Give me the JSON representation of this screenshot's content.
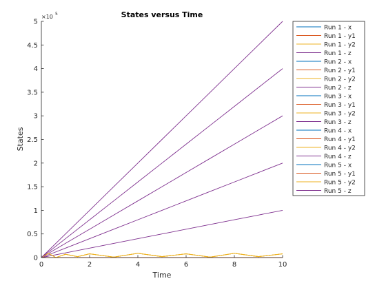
{
  "chart_data": {
    "type": "line",
    "title": "States versus Time",
    "xlabel": "Time",
    "ylabel": "States",
    "xlim": [
      0,
      10
    ],
    "ylim": [
      0,
      500000
    ],
    "x_ticks": [
      0,
      2,
      4,
      6,
      8,
      10
    ],
    "x_tick_labels": [
      "0",
      "2",
      "4",
      "6",
      "8",
      "10"
    ],
    "y_ticks": [
      0,
      50000,
      100000,
      150000,
      200000,
      250000,
      300000,
      350000,
      400000,
      450000,
      500000
    ],
    "y_tick_labels": [
      "0",
      "0.5",
      "1",
      "1.5",
      "2",
      "2.5",
      "3",
      "3.5",
      "4",
      "4.5",
      "5"
    ],
    "y_exponent_base": "×10",
    "y_exponent_power": "5",
    "grid": false,
    "legend_position": "outside-right",
    "series": [
      {
        "name": "Run 1 - x",
        "color": "#0072BD",
        "x": [
          0,
          10
        ],
        "y": [
          0,
          0
        ]
      },
      {
        "name": "Run 1 - y1",
        "color": "#D95319",
        "x": [
          0,
          10
        ],
        "y": [
          0,
          0
        ]
      },
      {
        "name": "Run 1 - y2",
        "color": "#EDB120",
        "x": [
          0,
          0.3,
          0.6,
          1,
          1.5,
          2,
          3,
          4,
          5,
          6,
          7,
          8,
          9,
          10
        ],
        "y": [
          0,
          9000,
          0,
          7000,
          2000,
          8000,
          1000,
          9000,
          2000,
          8000,
          1000,
          9000,
          2000,
          8000
        ]
      },
      {
        "name": "Run 1 - z",
        "color": "#7E2F8E",
        "x": [
          0,
          1,
          2,
          3,
          4,
          5,
          6,
          7,
          8,
          9,
          10
        ],
        "y": [
          0,
          10000,
          20000,
          30000,
          40000,
          50000,
          60000,
          70000,
          80000,
          90000,
          100000
        ]
      },
      {
        "name": "Run 2 - x",
        "color": "#0072BD",
        "x": [
          0,
          10
        ],
        "y": [
          0,
          0
        ]
      },
      {
        "name": "Run 2 - y1",
        "color": "#D95319",
        "x": [
          0,
          10
        ],
        "y": [
          0,
          0
        ]
      },
      {
        "name": "Run 2 - y2",
        "color": "#EDB120",
        "x": [
          0,
          0.3,
          0.6,
          1,
          1.5,
          2,
          3,
          4,
          5,
          6,
          7,
          8,
          9,
          10
        ],
        "y": [
          0,
          9000,
          0,
          7000,
          2000,
          8000,
          1000,
          9000,
          2000,
          8000,
          1000,
          9000,
          2000,
          8000
        ]
      },
      {
        "name": "Run 2 - z",
        "color": "#7E2F8E",
        "x": [
          0,
          1,
          2,
          3,
          4,
          5,
          6,
          7,
          8,
          9,
          10
        ],
        "y": [
          0,
          20000,
          40000,
          60000,
          80000,
          100000,
          120000,
          140000,
          160000,
          180000,
          200000
        ]
      },
      {
        "name": "Run 3 - x",
        "color": "#0072BD",
        "x": [
          0,
          10
        ],
        "y": [
          0,
          0
        ]
      },
      {
        "name": "Run 3 - y1",
        "color": "#D95319",
        "x": [
          0,
          10
        ],
        "y": [
          0,
          0
        ]
      },
      {
        "name": "Run 3 - y2",
        "color": "#EDB120",
        "x": [
          0,
          0.3,
          0.6,
          1,
          1.5,
          2,
          3,
          4,
          5,
          6,
          7,
          8,
          9,
          10
        ],
        "y": [
          0,
          9000,
          0,
          7000,
          2000,
          8000,
          1000,
          9000,
          2000,
          8000,
          1000,
          9000,
          2000,
          8000
        ]
      },
      {
        "name": "Run 3 - z",
        "color": "#7E2F8E",
        "x": [
          0,
          1,
          2,
          3,
          4,
          5,
          6,
          7,
          8,
          9,
          10
        ],
        "y": [
          0,
          30000,
          60000,
          90000,
          120000,
          150000,
          180000,
          210000,
          240000,
          270000,
          300000
        ]
      },
      {
        "name": "Run 4 - x",
        "color": "#0072BD",
        "x": [
          0,
          10
        ],
        "y": [
          0,
          0
        ]
      },
      {
        "name": "Run 4 - y1",
        "color": "#D95319",
        "x": [
          0,
          10
        ],
        "y": [
          0,
          0
        ]
      },
      {
        "name": "Run 4 - y2",
        "color": "#EDB120",
        "x": [
          0,
          0.3,
          0.6,
          1,
          1.5,
          2,
          3,
          4,
          5,
          6,
          7,
          8,
          9,
          10
        ],
        "y": [
          0,
          9000,
          0,
          7000,
          2000,
          8000,
          1000,
          9000,
          2000,
          8000,
          1000,
          9000,
          2000,
          8000
        ]
      },
      {
        "name": "Run 4 - z",
        "color": "#7E2F8E",
        "x": [
          0,
          1,
          2,
          3,
          4,
          5,
          6,
          7,
          8,
          9,
          10
        ],
        "y": [
          0,
          40000,
          80000,
          120000,
          160000,
          200000,
          240000,
          280000,
          320000,
          360000,
          400000
        ]
      },
      {
        "name": "Run 5 - x",
        "color": "#0072BD",
        "x": [
          0,
          10
        ],
        "y": [
          0,
          0
        ]
      },
      {
        "name": "Run 5 - y1",
        "color": "#D95319",
        "x": [
          0,
          10
        ],
        "y": [
          0,
          0
        ]
      },
      {
        "name": "Run 5 - y2",
        "color": "#EDB120",
        "x": [
          0,
          0.3,
          0.6,
          1,
          1.5,
          2,
          3,
          4,
          5,
          6,
          7,
          8,
          9,
          10
        ],
        "y": [
          0,
          9000,
          0,
          7000,
          2000,
          8000,
          1000,
          9000,
          2000,
          8000,
          1000,
          9000,
          2000,
          8000
        ]
      },
      {
        "name": "Run 5 - z",
        "color": "#7E2F8E",
        "x": [
          0,
          1,
          2,
          3,
          4,
          5,
          6,
          7,
          8,
          9,
          10
        ],
        "y": [
          0,
          50000,
          100000,
          150000,
          200000,
          250000,
          300000,
          350000,
          400000,
          450000,
          500000
        ]
      }
    ]
  }
}
